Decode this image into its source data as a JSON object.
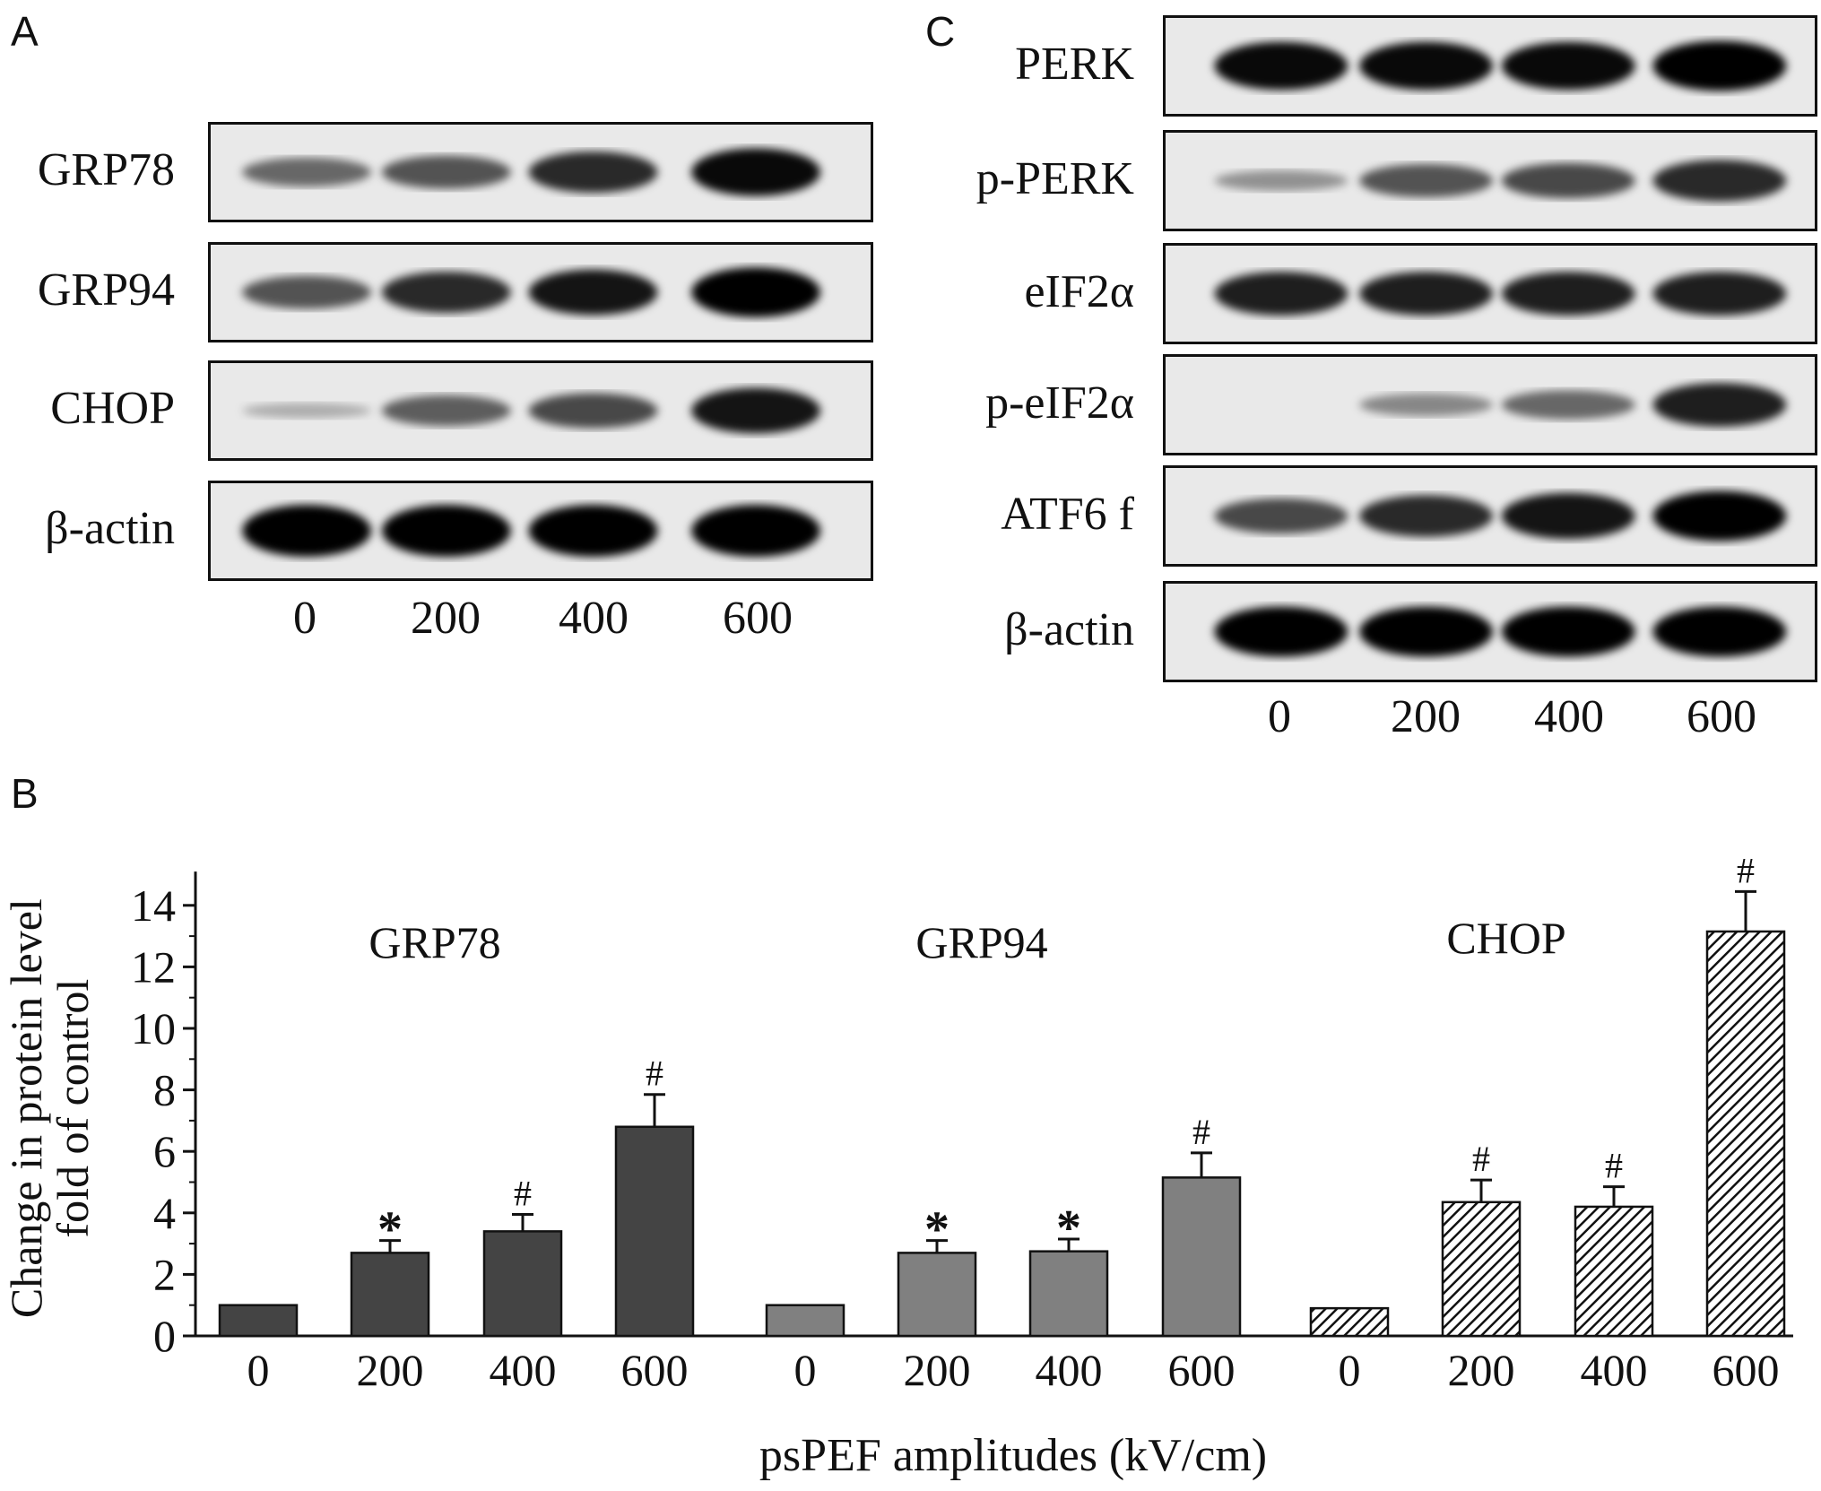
{
  "panels": {
    "a": {
      "letter": "A",
      "blots": [
        {
          "label": "GRP78",
          "intensity": [
            0.45,
            0.55,
            0.75,
            0.9
          ]
        },
        {
          "label": "GRP94",
          "intensity": [
            0.55,
            0.75,
            0.85,
            0.95
          ]
        },
        {
          "label": "CHOP",
          "intensity": [
            0.12,
            0.5,
            0.6,
            0.85
          ]
        },
        {
          "label": "β-actin",
          "intensity": [
            1.0,
            1.0,
            1.0,
            1.0
          ]
        }
      ],
      "lanes": [
        "0",
        "200",
        "400",
        "600"
      ]
    },
    "c": {
      "letter": "C",
      "blots": [
        {
          "label": "PERK",
          "intensity": [
            0.9,
            0.9,
            0.9,
            0.95
          ]
        },
        {
          "label": "p-PERK",
          "intensity": [
            0.25,
            0.55,
            0.6,
            0.75
          ]
        },
        {
          "label": "eIF2α",
          "intensity": [
            0.8,
            0.8,
            0.8,
            0.8
          ]
        },
        {
          "label": "p-eIF2α",
          "intensity": [
            0.0,
            0.3,
            0.45,
            0.8
          ]
        },
        {
          "label": "ATF6 f",
          "intensity": [
            0.6,
            0.75,
            0.85,
            0.95
          ]
        },
        {
          "label": "β-actin",
          "intensity": [
            0.95,
            0.95,
            0.95,
            0.95
          ]
        }
      ],
      "lanes": [
        "0",
        "200",
        "400",
        "600"
      ]
    },
    "b": {
      "letter": "B"
    }
  },
  "chart_data": {
    "type": "bar",
    "xlabel": "psPEF amplitudes (kV/cm)",
    "ylabel": [
      "Change in protein level",
      "fold of control"
    ],
    "ylim": [
      0,
      15
    ],
    "yticks": [
      0,
      2,
      4,
      6,
      8,
      10,
      12,
      14
    ],
    "categories": [
      "0",
      "200",
      "400",
      "600"
    ],
    "series": [
      {
        "name": "GRP78",
        "color": "#444444",
        "pattern": "solid",
        "values": [
          1.0,
          2.7,
          3.4,
          6.8
        ],
        "errors": [
          0,
          0.4,
          0.55,
          1.05
        ],
        "marks": [
          "",
          "*",
          "#",
          "#"
        ]
      },
      {
        "name": "GRP94",
        "color": "#808080",
        "pattern": "solid",
        "values": [
          1.0,
          2.7,
          2.75,
          5.15
        ],
        "errors": [
          0,
          0.4,
          0.4,
          0.8
        ],
        "marks": [
          "",
          "*",
          "*",
          "#"
        ]
      },
      {
        "name": "CHOP",
        "color": "#ffffff",
        "pattern": "hatched",
        "values": [
          0.9,
          4.35,
          4.2,
          13.15
        ],
        "errors": [
          0,
          0.72,
          0.65,
          1.3
        ],
        "marks": [
          "",
          "#",
          "#",
          "#"
        ]
      }
    ],
    "grid": false,
    "legend": "none"
  }
}
